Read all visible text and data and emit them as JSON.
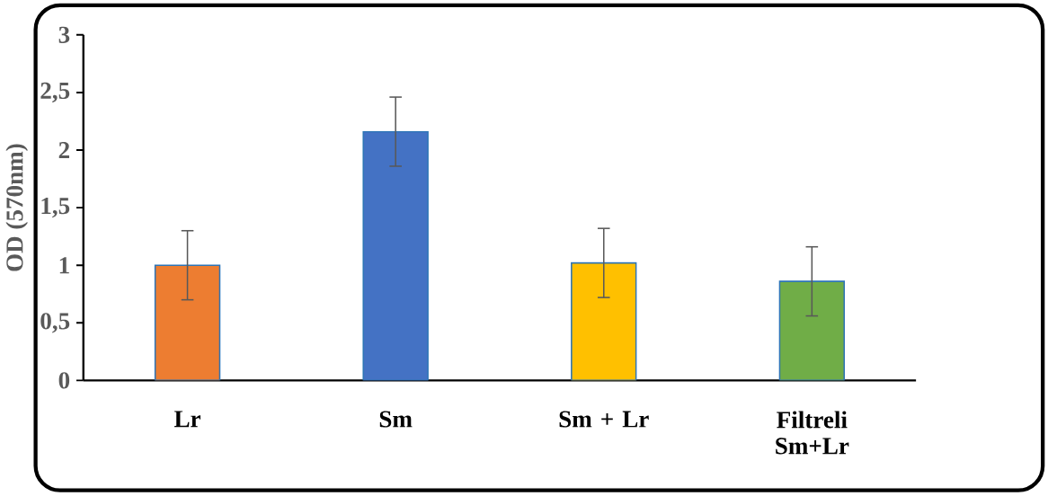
{
  "chart_data": {
    "type": "bar",
    "ylabel": "OD (570nm)",
    "categories": [
      "Lr",
      "Sm",
      "Sm + Lr",
      "Filtreli Sm+Lr"
    ],
    "values": [
      1.0,
      2.16,
      1.02,
      0.86
    ],
    "errors": [
      0.3,
      0.3,
      0.3,
      0.3
    ],
    "colors": [
      "#ed7d31",
      "#4472c4",
      "#ffc000",
      "#70ad47"
    ],
    "ylim": [
      0,
      3
    ],
    "yticks": [
      0,
      {
        "value": 0.5,
        "label": "0,5"
      },
      1,
      {
        "value": 1.5,
        "label": "1,5"
      },
      2,
      {
        "value": 2.5,
        "label": "2,5"
      },
      3
    ]
  }
}
